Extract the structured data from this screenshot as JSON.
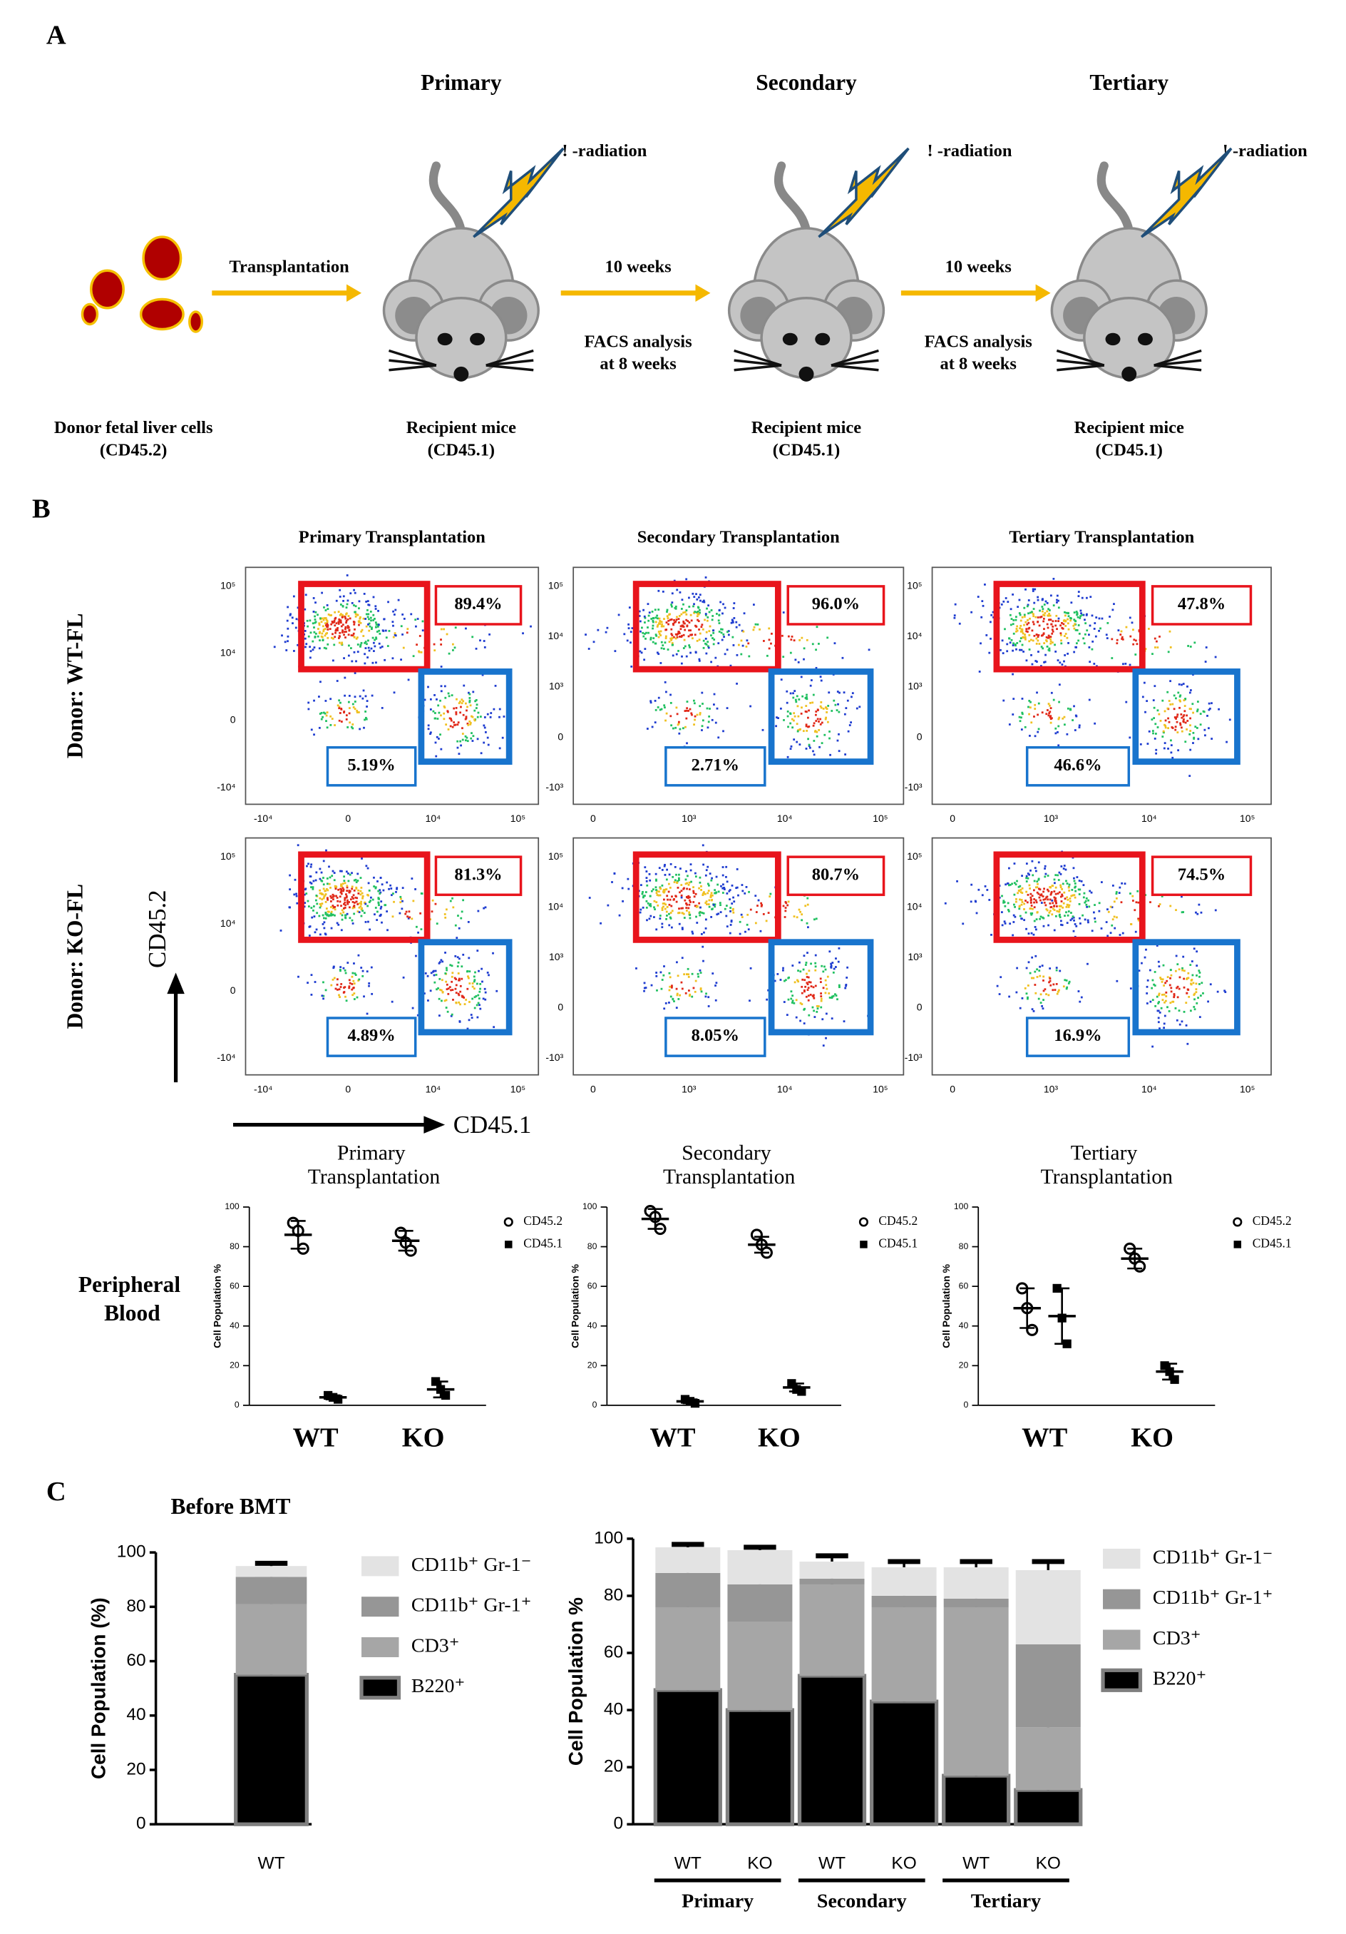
{
  "panel_a": {
    "label": "A",
    "donor": {
      "caption": "Donor fetal liver cells",
      "caption2": "(CD45.2)"
    },
    "arrows": [
      {
        "top": "Transplantation"
      },
      {
        "top": "10 weeks",
        "bottom": "FACS analysis",
        "bottom2": "at 8 weeks"
      },
      {
        "top": "10 weeks",
        "bottom": "FACS analysis",
        "bottom2": "at 8 weeks"
      }
    ],
    "stages": [
      {
        "title": "Primary",
        "radiation": "! -radiation",
        "caption": "Recipient mice",
        "caption2": "(CD45.1)"
      },
      {
        "title": "Secondary",
        "radiation": "! -radiation",
        "caption": "Recipient mice",
        "caption2": "(CD45.1)"
      },
      {
        "title": "Tertiary",
        "radiation": "! -radiation",
        "caption": "Recipient mice",
        "caption2": "(CD45.1)"
      }
    ]
  },
  "panel_b": {
    "label": "B",
    "y_axis": "CD45.2",
    "x_axis": "CD45.1",
    "row_label": "Peripheral Blood",
    "columns": [
      {
        "title": "Primary Transplantation",
        "yticks": [
          "10⁵",
          "10⁴",
          "0",
          "-10⁴"
        ],
        "xticks": [
          "-10⁴",
          "0",
          "10⁴",
          "10⁵"
        ]
      },
      {
        "title": "Secondary Transplantation",
        "yticks": [
          "10⁵",
          "10⁴",
          "10³",
          "0",
          "-10³"
        ],
        "xticks": [
          "0",
          "10³",
          "10⁴",
          "10⁵"
        ]
      },
      {
        "title": "Tertiary Transplantation",
        "yticks": [
          "10⁵",
          "10⁴",
          "10³",
          "0",
          "-10³"
        ],
        "xticks": [
          "0",
          "10³",
          "10⁴",
          "10⁵"
        ]
      }
    ],
    "rows": [
      {
        "label": "Donor: WT-FL",
        "gates": [
          [
            "89.4%",
            "5.19%"
          ],
          [
            "96.0%",
            "2.71%"
          ],
          [
            "47.8%",
            "46.6%"
          ]
        ]
      },
      {
        "label": "Donor: KO-FL",
        "gates": [
          [
            "81.3%",
            "4.89%"
          ],
          [
            "80.7%",
            "8.05%"
          ],
          [
            "74.5%",
            "16.9%"
          ]
        ]
      }
    ]
  },
  "panel_c": {
    "label": "C"
  },
  "chart_data": [
    {
      "type": "dot",
      "title": "Primary Transplantation",
      "ylabel": "Cell Population %",
      "categories": [
        "WT",
        "KO"
      ],
      "ylim": [
        0,
        100
      ],
      "yticks": [
        0,
        20,
        40,
        60,
        80,
        100
      ],
      "series": [
        {
          "name": "CD45.2",
          "marker": "open-circle",
          "color": "#000000",
          "values": [
            [
              92,
              88,
              79
            ],
            [
              87,
              82,
              78
            ]
          ],
          "means": [
            86,
            83
          ],
          "errors": [
            7,
            5
          ]
        },
        {
          "name": "CD45.1",
          "marker": "square",
          "color": "#000000",
          "values": [
            [
              5,
              4,
              3
            ],
            [
              12,
              8,
              5
            ]
          ],
          "means": [
            4,
            8
          ],
          "errors": [
            1,
            4
          ]
        }
      ]
    },
    {
      "type": "dot",
      "title": "Secondary Transplantation",
      "ylabel": "Cell Population %",
      "categories": [
        "WT",
        "KO"
      ],
      "ylim": [
        0,
        100
      ],
      "yticks": [
        0,
        20,
        40,
        60,
        80,
        100
      ],
      "series": [
        {
          "name": "CD45.2",
          "marker": "open-circle",
          "color": "#000000",
          "values": [
            [
              98,
              95,
              89
            ],
            [
              86,
              81,
              77
            ]
          ],
          "means": [
            94,
            81
          ],
          "errors": [
            5,
            4
          ]
        },
        {
          "name": "CD45.1",
          "marker": "square",
          "color": "#000000",
          "values": [
            [
              3,
              2,
              1
            ],
            [
              11,
              8,
              7
            ]
          ],
          "means": [
            2,
            9
          ],
          "errors": [
            1,
            2
          ]
        }
      ]
    },
    {
      "type": "dot",
      "title": "Tertiary Transplantation",
      "ylabel": "Cell Population %",
      "categories": [
        "WT",
        "KO"
      ],
      "ylim": [
        0,
        100
      ],
      "yticks": [
        0,
        20,
        40,
        60,
        80,
        100
      ],
      "series": [
        {
          "name": "CD45.2",
          "marker": "open-circle",
          "color": "#000000",
          "values": [
            [
              59,
              49,
              38
            ],
            [
              79,
              74,
              70
            ]
          ],
          "means": [
            49,
            74
          ],
          "errors": [
            10,
            5
          ]
        },
        {
          "name": "CD45.1",
          "marker": "square",
          "color": "#000000",
          "values": [
            [
              59,
              44,
              31
            ],
            [
              20,
              17,
              13
            ]
          ],
          "means": [
            45,
            17
          ],
          "errors": [
            14,
            4
          ]
        }
      ]
    },
    {
      "type": "stacked-bar",
      "title": "Before BMT",
      "ylabel": "Cell Population (%)",
      "categories": [
        "WT"
      ],
      "ylim": [
        0,
        100
      ],
      "yticks": [
        0,
        20,
        40,
        60,
        80,
        100
      ],
      "series": [
        {
          "name": "B220⁺",
          "color": "#000000",
          "values": [
            55
          ],
          "errors": [
            5
          ]
        },
        {
          "name": "CD3⁺",
          "color": "#a6a6a6",
          "values": [
            26
          ],
          "errors": [
            1
          ]
        },
        {
          "name": "CD11b⁺ Gr-1⁺",
          "color": "#969696",
          "values": [
            10
          ],
          "errors": [
            1
          ]
        },
        {
          "name": "CD11b⁺ Gr-1⁻",
          "color": "#e3e3e3",
          "values": [
            4
          ],
          "errors": [
            1
          ]
        }
      ]
    },
    {
      "type": "stacked-bar",
      "ylabel": "Cell Population %",
      "categories": [
        "WT",
        "KO",
        "WT",
        "KO",
        "WT",
        "KO"
      ],
      "groups": [
        "Primary",
        "Secondary",
        "Tertiary"
      ],
      "ylim": [
        0,
        100
      ],
      "yticks": [
        0,
        20,
        40,
        60,
        80,
        100
      ],
      "series": [
        {
          "name": "B220⁺",
          "color": "#000000",
          "values": [
            47,
            40,
            52,
            43,
            17,
            12
          ],
          "errors": [
            6,
            6,
            7,
            7,
            4,
            4
          ]
        },
        {
          "name": "CD3⁺",
          "color": "#a6a6a6",
          "values": [
            29,
            31,
            32,
            33,
            59,
            22
          ],
          "errors": [
            1,
            2,
            1,
            3,
            2,
            1
          ]
        },
        {
          "name": "CD11b⁺ Gr-1⁺",
          "color": "#969696",
          "values": [
            12,
            13,
            2,
            4,
            3,
            29
          ],
          "errors": [
            1,
            2,
            1,
            2,
            1,
            1
          ]
        },
        {
          "name": "CD11b⁺ Gr-1⁻",
          "color": "#e3e3e3",
          "values": [
            9,
            12,
            6,
            10,
            11,
            26
          ],
          "errors": [
            1,
            1,
            2,
            2,
            2,
            3
          ]
        }
      ]
    }
  ]
}
